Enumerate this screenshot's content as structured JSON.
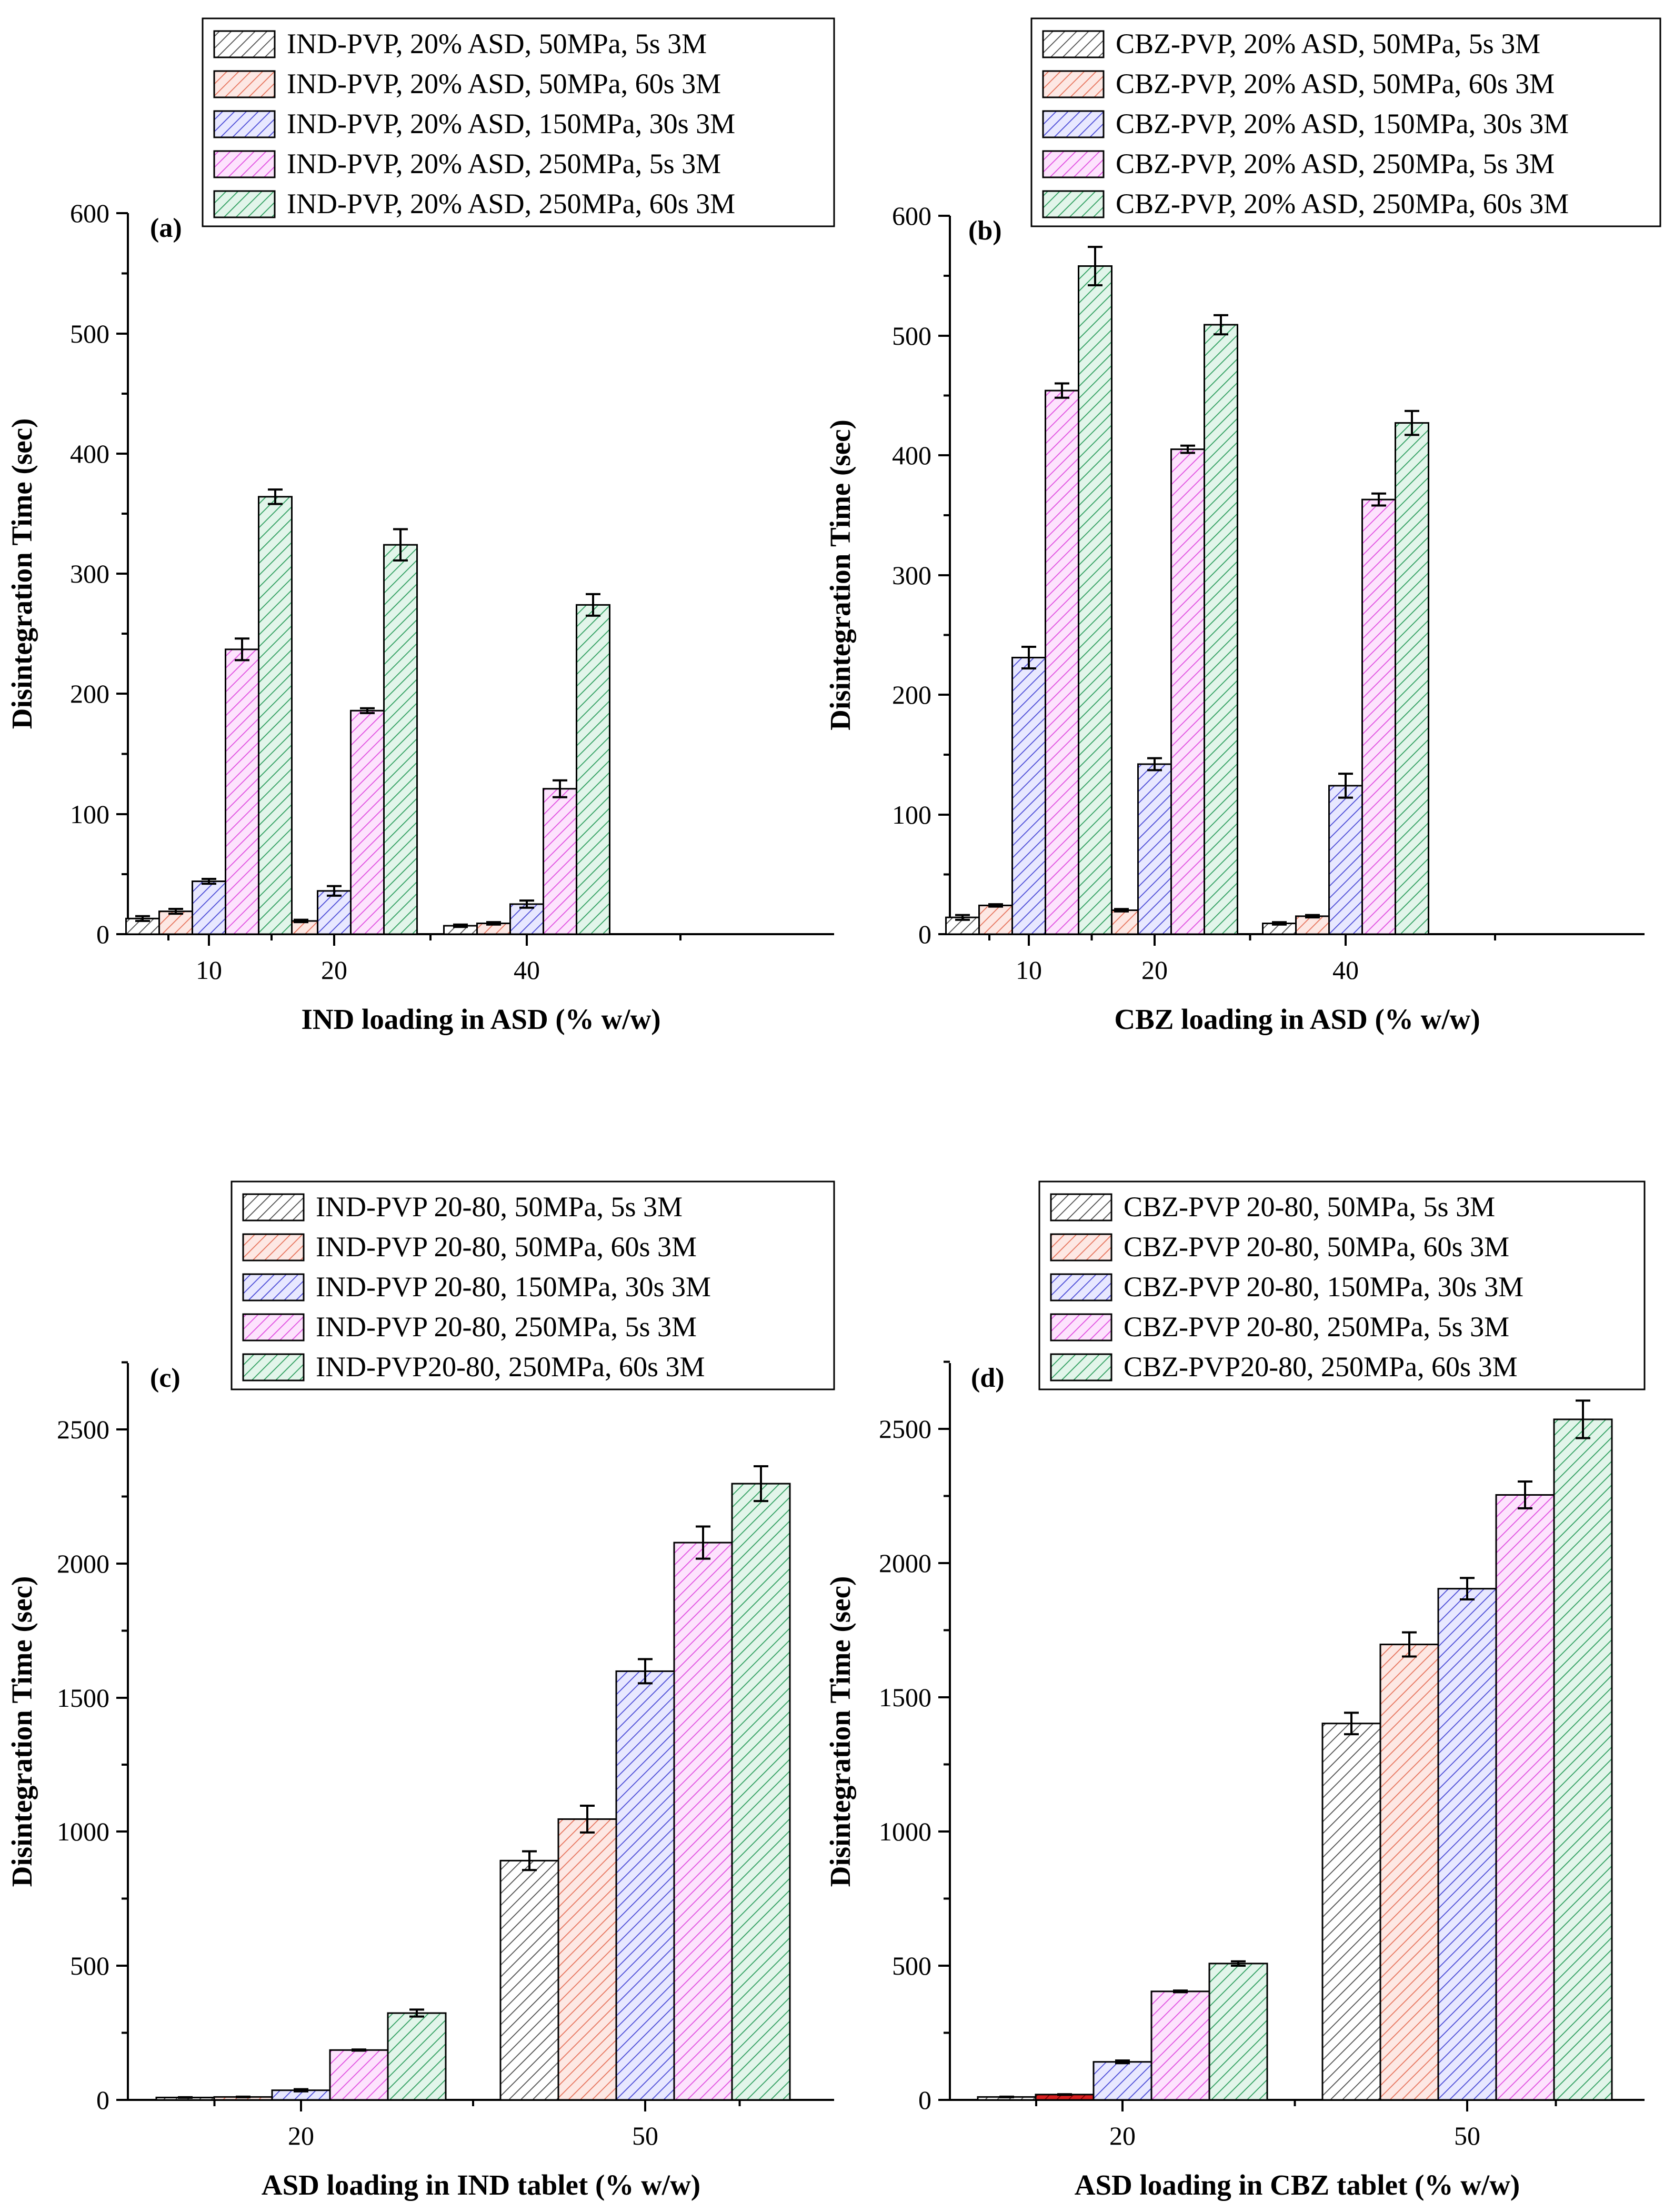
{
  "chart_data": [
    {
      "panel": "(a)",
      "type": "bar",
      "categories": [
        "10",
        "20",
        "40"
      ],
      "xlabel": "IND loading in ASD (% w/w)",
      "ylabel": "Disintegration Time (sec)",
      "ylim": [
        0,
        600
      ],
      "yticks": [
        "0",
        "100",
        "200",
        "300",
        "400",
        "500",
        "600"
      ],
      "legend_position": "top-right",
      "series": [
        {
          "name": "IND-PVP, 20% ASD, 50MPa, 5s 3M",
          "color": "#4d4d4d",
          "fill": "#ffffff",
          "values": [
            13,
            9,
            7
          ],
          "errors": [
            2,
            1,
            1
          ]
        },
        {
          "name": "IND-PVP, 20% ASD, 50MPa, 60s 3M",
          "color": "#e6735c",
          "fill": "#fde8e4",
          "values": [
            19,
            11,
            9
          ],
          "errors": [
            2,
            1,
            1
          ]
        },
        {
          "name": "IND-PVP, 20% ASD, 150MPa, 30s 3M",
          "color": "#4a4ad6",
          "fill": "#e8e8ff",
          "values": [
            44,
            36,
            25
          ],
          "errors": [
            2,
            4,
            3
          ]
        },
        {
          "name": "IND-PVP, 20% ASD, 250MPa, 5s 3M",
          "color": "#e04ee0",
          "fill": "#fde3fd",
          "values": [
            237,
            186,
            121
          ],
          "errors": [
            9,
            2,
            7
          ]
        },
        {
          "name": "IND-PVP, 20% ASD, 250MPa, 60s 3M",
          "color": "#2e9e5e",
          "fill": "#e2f5ea",
          "values": [
            364,
            324,
            274
          ],
          "errors": [
            6,
            13,
            9
          ]
        }
      ]
    },
    {
      "panel": "(b)",
      "type": "bar",
      "categories": [
        "10",
        "20",
        "40"
      ],
      "xlabel": "CBZ loading in ASD (% w/w)",
      "ylabel": "Disintegration Time (sec)",
      "ylim": [
        0,
        600
      ],
      "yticks": [
        "0",
        "100",
        "200",
        "300",
        "400",
        "500",
        "600"
      ],
      "legend_position": "top-right",
      "series": [
        {
          "name": "CBZ-PVP, 20% ASD, 50MPa, 5s 3M",
          "color": "#4d4d4d",
          "fill": "#ffffff",
          "values": [
            14,
            11,
            9
          ],
          "errors": [
            2,
            1,
            1
          ]
        },
        {
          "name": "CBZ-PVP, 20% ASD, 50MPa, 60s 3M",
          "color": "#e6735c",
          "fill": "#fde8e4",
          "values": [
            24,
            20,
            15
          ],
          "errors": [
            1,
            1,
            1
          ]
        },
        {
          "name": "CBZ-PVP, 20% ASD, 150MPa, 30s 3M",
          "color": "#4a4ad6",
          "fill": "#e8e8ff",
          "values": [
            231,
            142,
            124
          ],
          "errors": [
            9,
            5,
            10
          ]
        },
        {
          "name": "CBZ-PVP, 20% ASD, 250MPa, 5s 3M",
          "color": "#e04ee0",
          "fill": "#fde3fd",
          "values": [
            454,
            405,
            363
          ],
          "errors": [
            6,
            3,
            5
          ]
        },
        {
          "name": "CBZ-PVP, 20% ASD, 250MPa, 60s 3M",
          "color": "#2e9e5e",
          "fill": "#e2f5ea",
          "values": [
            558,
            509,
            427
          ],
          "errors": [
            16,
            8,
            10
          ]
        }
      ]
    },
    {
      "panel": "(c)",
      "type": "bar",
      "categories": [
        "20",
        "50"
      ],
      "xlabel": "ASD loading in IND tablet (% w/w)",
      "ylabel": "Disintegration Time (sec)",
      "ylim": [
        0,
        2750
      ],
      "yticks": [
        "0",
        "500",
        "1000",
        "1500",
        "2000",
        "2500"
      ],
      "legend_position": "top-right",
      "series": [
        {
          "name": "IND-PVP 20-80, 50MPa, 5s 3M",
          "color": "#4d4d4d",
          "fill": "#ffffff",
          "values": [
            9,
            893
          ],
          "errors": [
            1,
            35
          ]
        },
        {
          "name": "IND-PVP 20-80, 50MPa, 60s 3M",
          "color": "#e6735c",
          "fill": "#fde8e4",
          "values": [
            11,
            1048
          ],
          "errors": [
            1,
            50
          ]
        },
        {
          "name": "IND-PVP 20-80, 150MPa, 30s 3M",
          "color": "#4a4ad6",
          "fill": "#e8e8ff",
          "values": [
            36,
            1600
          ],
          "errors": [
            4,
            45
          ]
        },
        {
          "name": "IND-PVP 20-80, 250MPa, 5s 3M",
          "color": "#e04ee0",
          "fill": "#fde3fd",
          "values": [
            186,
            2080
          ],
          "errors": [
            2,
            60
          ]
        },
        {
          "name": "IND-PVP20-80, 250MPa, 60s 3M",
          "color": "#2e9e5e",
          "fill": "#e2f5ea",
          "values": [
            324,
            2300
          ],
          "errors": [
            13,
            65
          ]
        }
      ]
    },
    {
      "panel": "(d)",
      "type": "bar",
      "categories": [
        "20",
        "50"
      ],
      "xlabel": "ASD loading in CBZ tablet (% w/w)",
      "ylabel": "Disintegration Time (sec)",
      "ylim": [
        0,
        2750
      ],
      "yticks": [
        "0",
        "500",
        "1000",
        "1500",
        "2000",
        "2500"
      ],
      "legend_position": "top-right",
      "series": [
        {
          "name": "CBZ-PVP 20-80, 50MPa, 5s 3M",
          "color": "#4d4d4d",
          "fill": "#ffffff",
          "values": [
            11,
            1405
          ],
          "errors": [
            1,
            40
          ]
        },
        {
          "name": "CBZ-PVP 20-80, 50MPa, 60s 3M",
          "color": "#e6735c",
          "fill": "#fde8e4",
          "values": [
            20,
            1700
          ],
          "errors": [
            1,
            45
          ]
        },
        {
          "name": "CBZ-PVP 20-80, 150MPa, 30s 3M",
          "color": "#4a4ad6",
          "fill": "#e8e8ff",
          "values": [
            142,
            1908
          ],
          "errors": [
            5,
            40
          ]
        },
        {
          "name": "CBZ-PVP 20-80, 250MPa, 5s 3M",
          "color": "#e04ee0",
          "fill": "#fde3fd",
          "values": [
            405,
            2258
          ],
          "errors": [
            3,
            50
          ]
        },
        {
          "name": "CBZ-PVP20-80, 250MPa, 60s 3M",
          "color": "#2e9e5e",
          "fill": "#e2f5ea",
          "values": [
            509,
            2540
          ],
          "errors": [
            8,
            70
          ]
        }
      ]
    }
  ]
}
